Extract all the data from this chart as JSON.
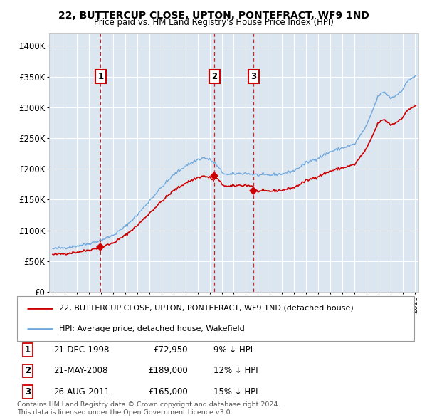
{
  "title1": "22, BUTTERCUP CLOSE, UPTON, PONTEFRACT, WF9 1ND",
  "title2": "Price paid vs. HM Land Registry's House Price Index (HPI)",
  "background_color": "#dce6f1",
  "plot_bg": "#dce6f1",
  "transactions": [
    {
      "label": "1",
      "date": "21-DEC-1998",
      "price": 72950,
      "pct": "9% ↓ HPI",
      "x_year": 1998.97
    },
    {
      "label": "2",
      "date": "21-MAY-2008",
      "price": 189000,
      "pct": "12% ↓ HPI",
      "x_year": 2008.39
    },
    {
      "label": "3",
      "date": "26-AUG-2011",
      "price": 165000,
      "pct": "15% ↓ HPI",
      "x_year": 2011.65
    }
  ],
  "hpi_line_color": "#6fa8dc",
  "price_line_color": "#cc0000",
  "annotation_box_color": "#cc0000",
  "dashed_line_color": "#cc0000",
  "footnote1": "Contains HM Land Registry data © Crown copyright and database right 2024.",
  "footnote2": "This data is licensed under the Open Government Licence v3.0.",
  "legend_label1": "22, BUTTERCUP CLOSE, UPTON, PONTEFRACT, WF9 1ND (detached house)",
  "legend_label2": "HPI: Average price, detached house, Wakefield",
  "ylim": [
    0,
    420000
  ],
  "xlim_start": 1994.7,
  "xlim_end": 2025.3,
  "yticks": [
    0,
    50000,
    100000,
    150000,
    200000,
    250000,
    300000,
    350000,
    400000
  ],
  "ytick_labels": [
    "£0",
    "£50K",
    "£100K",
    "£150K",
    "£200K",
    "£250K",
    "£300K",
    "£350K",
    "£400K"
  ],
  "xticks": [
    1995,
    1996,
    1997,
    1998,
    1999,
    2000,
    2001,
    2002,
    2003,
    2004,
    2005,
    2006,
    2007,
    2008,
    2009,
    2010,
    2011,
    2012,
    2013,
    2014,
    2015,
    2016,
    2017,
    2018,
    2019,
    2020,
    2021,
    2022,
    2023,
    2024,
    2025
  ]
}
